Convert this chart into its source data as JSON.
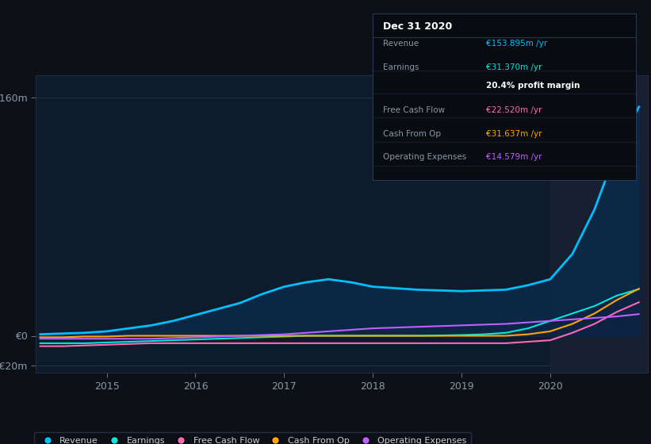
{
  "background_color": "#0d1117",
  "plot_bg_color": "#0d1b2a",
  "grid_color": "#1e3050",
  "title": "Dec 31 2020",
  "info_box_rows": [
    {
      "label": "Revenue",
      "value": "€153.895m /yr",
      "value_color": "#00bfff"
    },
    {
      "label": "Earnings",
      "value": "€31.370m /yr",
      "value_color": "#00e5dd"
    },
    {
      "label": "",
      "value": "20.4% profit margin",
      "value_color": "#ffffff",
      "bold": true
    },
    {
      "label": "Free Cash Flow",
      "value": "€22.520m /yr",
      "value_color": "#ff69b4"
    },
    {
      "label": "Cash From Op",
      "value": "€31.637m /yr",
      "value_color": "#ffa500"
    },
    {
      "label": "Operating Expenses",
      "value": "€14.579m /yr",
      "value_color": "#bf5fff"
    }
  ],
  "ylim": [
    -25,
    175
  ],
  "ytick_vals": [
    -20,
    0,
    160
  ],
  "ytick_labels": [
    "-€20m",
    "€0",
    "€160m"
  ],
  "xtick_positions": [
    2015.0,
    2016.0,
    2017.0,
    2018.0,
    2019.0,
    2020.0
  ],
  "xtick_labels": [
    "2015",
    "2016",
    "2017",
    "2018",
    "2019",
    "2020"
  ],
  "xlim": [
    2014.2,
    2021.1
  ],
  "x_years": [
    2014.25,
    2014.5,
    2014.75,
    2015.0,
    2015.25,
    2015.5,
    2015.75,
    2016.0,
    2016.25,
    2016.5,
    2016.75,
    2017.0,
    2017.25,
    2017.5,
    2017.75,
    2018.0,
    2018.25,
    2018.5,
    2018.75,
    2019.0,
    2019.25,
    2019.5,
    2019.75,
    2020.0,
    2020.25,
    2020.5,
    2020.75,
    2021.0
  ],
  "revenue": [
    1.0,
    1.5,
    2.0,
    3.0,
    5.0,
    7.0,
    10.0,
    14.0,
    18.0,
    22.0,
    28.0,
    33.0,
    36.0,
    38.0,
    36.0,
    33.0,
    32.0,
    31.0,
    30.5,
    30.0,
    30.5,
    31.0,
    34.0,
    38.0,
    55.0,
    85.0,
    125.0,
    153.895
  ],
  "earnings": [
    -5.0,
    -5.0,
    -5.0,
    -4.5,
    -4.0,
    -3.5,
    -3.0,
    -2.5,
    -2.0,
    -1.5,
    -1.0,
    -0.5,
    0.0,
    0.0,
    0.0,
    0.0,
    0.0,
    0.0,
    0.2,
    0.5,
    1.0,
    2.0,
    5.0,
    10.0,
    15.0,
    20.0,
    27.0,
    31.37
  ],
  "free_cash_flow": [
    -7.0,
    -7.0,
    -6.5,
    -6.0,
    -5.5,
    -5.0,
    -5.0,
    -5.0,
    -5.0,
    -5.0,
    -5.0,
    -5.0,
    -5.0,
    -5.0,
    -5.0,
    -5.0,
    -5.0,
    -5.0,
    -5.0,
    -5.0,
    -5.0,
    -5.0,
    -4.0,
    -3.0,
    2.0,
    8.0,
    16.0,
    22.52
  ],
  "cash_from_op": [
    -1.0,
    -1.0,
    -0.5,
    -0.5,
    0.0,
    0.0,
    0.0,
    0.0,
    0.0,
    0.0,
    0.0,
    0.0,
    0.0,
    0.0,
    0.0,
    0.0,
    0.0,
    0.0,
    0.0,
    0.0,
    0.0,
    0.0,
    1.0,
    3.0,
    8.0,
    15.0,
    24.0,
    31.637
  ],
  "op_expenses": [
    -2.0,
    -2.0,
    -2.0,
    -2.0,
    -2.0,
    -2.0,
    -1.5,
    -1.0,
    -0.5,
    0.0,
    0.5,
    1.0,
    2.0,
    3.0,
    4.0,
    5.0,
    5.5,
    6.0,
    6.5,
    7.0,
    7.5,
    8.0,
    9.0,
    10.0,
    11.0,
    12.0,
    13.0,
    14.579
  ],
  "revenue_color": "#00bfff",
  "earnings_color": "#00e5dd",
  "free_cash_flow_color": "#ff69b4",
  "cash_from_op_color": "#ffa500",
  "op_expenses_color": "#bf5fff",
  "revenue_fill_color": "#0a2a4a",
  "shade_start_x": 2020.0,
  "shade_color": "#162030",
  "legend_labels": [
    "Revenue",
    "Earnings",
    "Free Cash Flow",
    "Cash From Op",
    "Operating Expenses"
  ],
  "legend_colors": [
    "#00bfff",
    "#00e5dd",
    "#ff69b4",
    "#ffa500",
    "#bf5fff"
  ]
}
